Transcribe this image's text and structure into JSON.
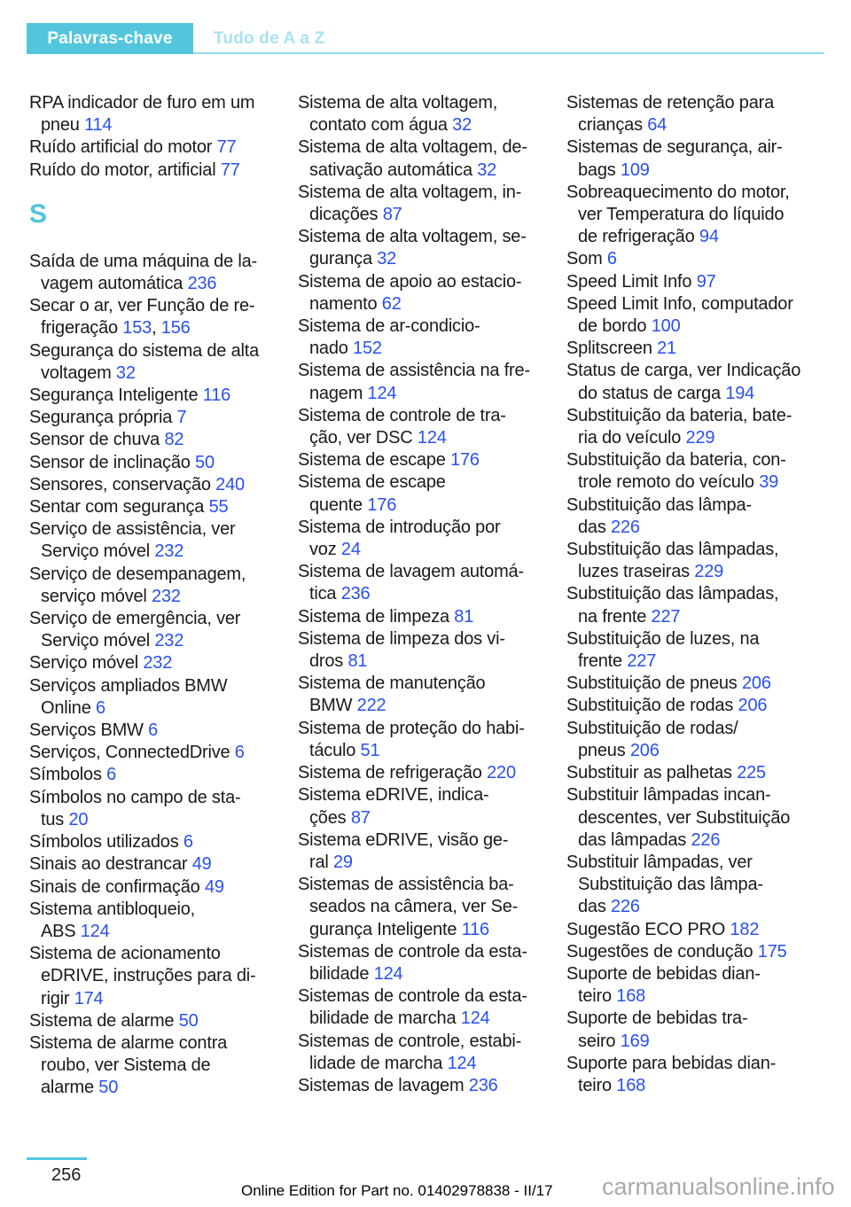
{
  "page": {
    "header": {
      "tab": "Palavras-chave",
      "title": "Tudo de A a Z"
    },
    "footer": {
      "page_number": "256",
      "edition_note": "Online Edition for Part no. 01402978838 - II/17",
      "watermark": "carmanualsonline.info"
    }
  },
  "colors": {
    "accent_teal": "#53c6dd",
    "title_teal_light": "#a9e2f0",
    "rule_teal_light": "#8edcee",
    "heading_teal": "#4fc4de",
    "link_blue": "#2850f0",
    "body_text": "#1a1a1a",
    "watermark_gray": "#a9a9a9"
  },
  "columns": [
    {
      "items": [
        {
          "lines": [
            "RPA indicador de furo em um",
            "pneu [114]"
          ]
        },
        {
          "lines": [
            "Ruído artificial do motor [77]"
          ]
        },
        {
          "lines": [
            "Ruído do motor, artificial [77]"
          ]
        },
        {
          "heading": "S"
        },
        {
          "lines": [
            "Saída de uma máquina de la-",
            "vagem automática [236]"
          ]
        },
        {
          "lines": [
            "Secar o ar, ver Função de re-",
            "frigeração [153], [156]"
          ]
        },
        {
          "lines": [
            "Segurança do sistema de alta",
            "voltagem [32]"
          ]
        },
        {
          "lines": [
            "Segurança Inteligente [116]"
          ]
        },
        {
          "lines": [
            "Segurança própria [7]"
          ]
        },
        {
          "lines": [
            "Sensor de chuva [82]"
          ]
        },
        {
          "lines": [
            "Sensor de inclinação [50]"
          ]
        },
        {
          "lines": [
            "Sensores, conservação [240]"
          ]
        },
        {
          "lines": [
            "Sentar com segurança [55]"
          ]
        },
        {
          "lines": [
            "Serviço de assistência, ver",
            "Serviço móvel [232]"
          ]
        },
        {
          "lines": [
            "Serviço de desempanagem,",
            "serviço móvel [232]"
          ]
        },
        {
          "lines": [
            "Serviço de emergência, ver",
            "Serviço móvel [232]"
          ]
        },
        {
          "lines": [
            "Serviço móvel [232]"
          ]
        },
        {
          "lines": [
            "Serviços ampliados BMW",
            "Online [6]"
          ]
        },
        {
          "lines": [
            "Serviços BMW [6]"
          ]
        },
        {
          "lines": [
            "Serviços, ConnectedDrive [6]"
          ]
        },
        {
          "lines": [
            "Símbolos [6]"
          ]
        },
        {
          "lines": [
            "Símbolos no campo de sta-",
            "tus [20]"
          ]
        },
        {
          "lines": [
            "Símbolos utilizados [6]"
          ]
        },
        {
          "lines": [
            "Sinais ao destrancar [49]"
          ]
        },
        {
          "lines": [
            "Sinais de confirmação [49]"
          ]
        },
        {
          "lines": [
            "Sistema antibloqueio,",
            "ABS [124]"
          ]
        },
        {
          "lines": [
            "Sistema de acionamento",
            "eDRIVE, instruções para di-",
            "rigir [174]"
          ]
        },
        {
          "lines": [
            "Sistema de alarme [50]"
          ]
        },
        {
          "lines": [
            "Sistema de alarme contra",
            "roubo, ver Sistema de",
            "alarme [50]"
          ]
        }
      ]
    },
    {
      "items": [
        {
          "lines": [
            "Sistema de alta voltagem,",
            "contato com água [32]"
          ]
        },
        {
          "lines": [
            "Sistema de alta voltagem, de-",
            "sativação automática [32]"
          ]
        },
        {
          "lines": [
            "Sistema de alta voltagem, in-",
            "dicações [87]"
          ]
        },
        {
          "lines": [
            "Sistema de alta voltagem, se-",
            "gurança [32]"
          ]
        },
        {
          "lines": [
            "Sistema de apoio ao estacio-",
            "namento [62]"
          ]
        },
        {
          "lines": [
            "Sistema de ar-condicio-",
            "nado [152]"
          ]
        },
        {
          "lines": [
            "Sistema de assistência na fre-",
            "nagem [124]"
          ]
        },
        {
          "lines": [
            "Sistema de controle de tra-",
            "ção, ver DSC [124]"
          ]
        },
        {
          "lines": [
            "Sistema de escape [176]"
          ]
        },
        {
          "lines": [
            "Sistema de escape",
            "quente [176]"
          ]
        },
        {
          "lines": [
            "Sistema de introdução por",
            "voz [24]"
          ]
        },
        {
          "lines": [
            "Sistema de lavagem automá-",
            "tica [236]"
          ]
        },
        {
          "lines": [
            "Sistema de limpeza [81]"
          ]
        },
        {
          "lines": [
            "Sistema de limpeza dos vi-",
            "dros [81]"
          ]
        },
        {
          "lines": [
            "Sistema de manutenção",
            "BMW [222]"
          ]
        },
        {
          "lines": [
            "Sistema de proteção do habi-",
            "táculo [51]"
          ]
        },
        {
          "lines": [
            "Sistema de refrigeração [220]"
          ]
        },
        {
          "lines": [
            "Sistema eDRIVE, indica-",
            "ções [87]"
          ]
        },
        {
          "lines": [
            "Sistema eDRIVE, visão ge-",
            "ral [29]"
          ]
        },
        {
          "lines": [
            "Sistemas de assistência ba-",
            "seados na câmera, ver Se-",
            "gurança Inteligente [116]"
          ]
        },
        {
          "lines": [
            "Sistemas de controle da esta-",
            "bilidade [124]"
          ]
        },
        {
          "lines": [
            "Sistemas de controle da esta-",
            "bilidade de marcha [124]"
          ]
        },
        {
          "lines": [
            "Sistemas de controle, estabi-",
            "lidade de marcha [124]"
          ]
        },
        {
          "lines": [
            "Sistemas de lavagem [236]"
          ]
        }
      ]
    },
    {
      "items": [
        {
          "lines": [
            "Sistemas de retenção para",
            "crianças [64]"
          ]
        },
        {
          "lines": [
            "Sistemas de segurança, air-",
            "bags [109]"
          ]
        },
        {
          "lines": [
            "Sobreaquecimento do motor,",
            "ver Temperatura do líquido",
            "de refrigeração [94]"
          ]
        },
        {
          "lines": [
            "Som [6]"
          ]
        },
        {
          "lines": [
            "Speed Limit Info [97]"
          ]
        },
        {
          "lines": [
            "Speed Limit Info, computador",
            "de bordo [100]"
          ]
        },
        {
          "lines": [
            "Splitscreen [21]"
          ]
        },
        {
          "lines": [
            "Status de carga, ver Indicação",
            "do status de carga [194]"
          ]
        },
        {
          "lines": [
            "Substituição da bateria, bate-",
            "ria do veículo [229]"
          ]
        },
        {
          "lines": [
            "Substituição da bateria, con-",
            "trole remoto do veículo [39]"
          ]
        },
        {
          "lines": [
            "Substituição das lâmpa-",
            "das [226]"
          ]
        },
        {
          "lines": [
            "Substituição das lâmpadas,",
            "luzes traseiras [229]"
          ]
        },
        {
          "lines": [
            "Substituição das lâmpadas,",
            "na frente [227]"
          ]
        },
        {
          "lines": [
            "Substituição de luzes, na",
            "frente [227]"
          ]
        },
        {
          "lines": [
            "Substituição de pneus [206]"
          ]
        },
        {
          "lines": [
            "Substituição de rodas [206]"
          ]
        },
        {
          "lines": [
            "Substituição de rodas/",
            "pneus [206]"
          ]
        },
        {
          "lines": [
            "Substituir as palhetas [225]"
          ]
        },
        {
          "lines": [
            "Substituir lâmpadas incan-",
            "descentes, ver Substituição",
            "das lâmpadas [226]"
          ]
        },
        {
          "lines": [
            "Substituir lâmpadas, ver",
            "Substituição das lâmpa-",
            "das [226]"
          ]
        },
        {
          "lines": [
            "Sugestão ECO PRO [182]"
          ]
        },
        {
          "lines": [
            "Sugestões de condução [175]"
          ]
        },
        {
          "lines": [
            "Suporte de bebidas dian-",
            "teiro [168]"
          ]
        },
        {
          "lines": [
            "Suporte de bebidas tra-",
            "seiro [169]"
          ]
        },
        {
          "lines": [
            "Suporte para bebidas dian-",
            "teiro [168]"
          ]
        }
      ]
    }
  ]
}
